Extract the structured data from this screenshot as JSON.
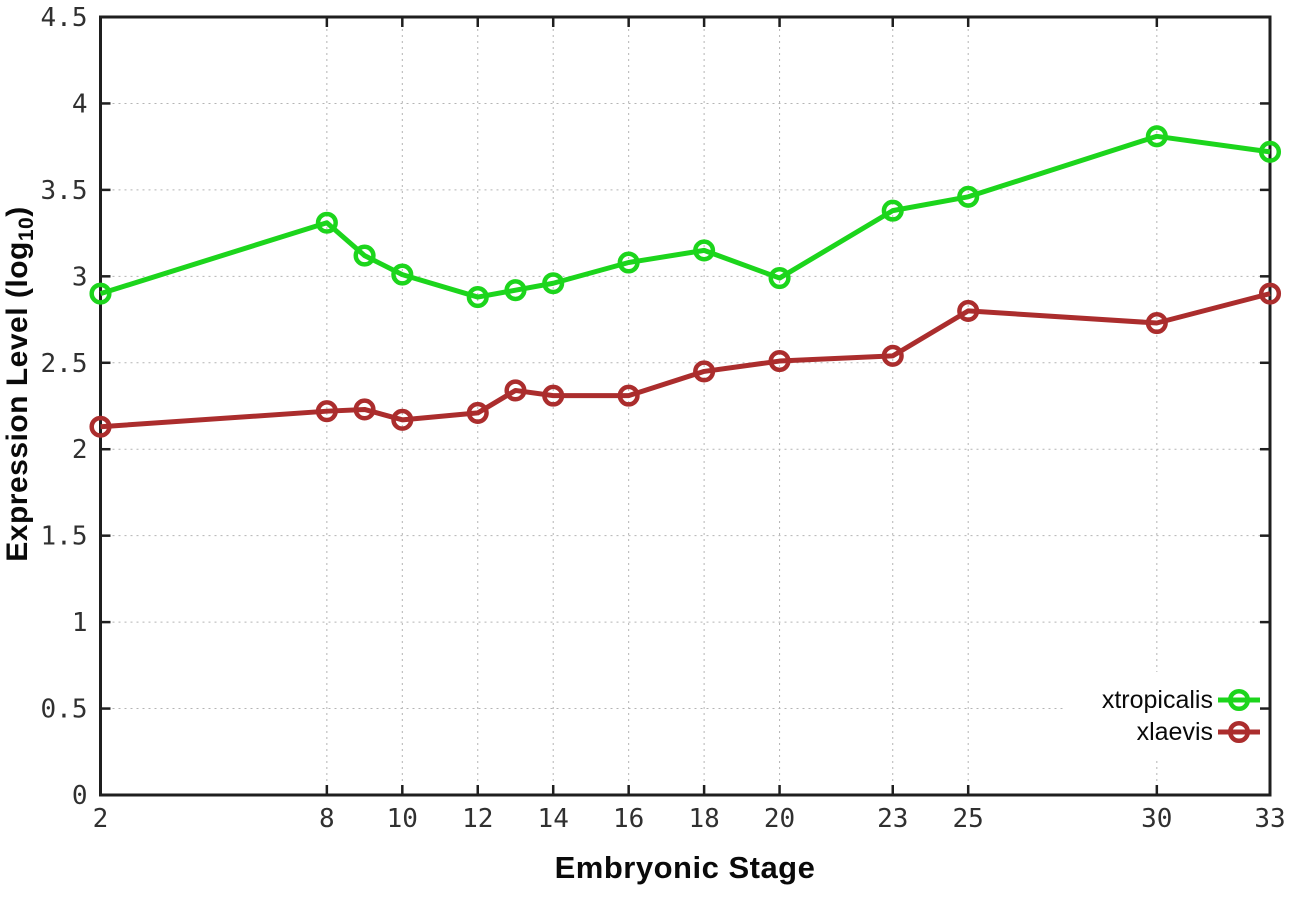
{
  "chart_data": {
    "type": "line",
    "title": "",
    "xlabel": "Embryonic Stage",
    "ylabel": "Expression Level (log10)",
    "ylabel_parts": {
      "pre": "Expression Level (log",
      "sub": "10",
      "post": ")"
    },
    "x": [
      2,
      8,
      9,
      10,
      12,
      13,
      14,
      16,
      18,
      20,
      23,
      25,
      30,
      33
    ],
    "series": [
      {
        "name": "xtropicalis",
        "color": "#1cd51c",
        "marker": "open-circle",
        "values": [
          2.9,
          3.31,
          3.12,
          3.01,
          2.88,
          2.92,
          2.96,
          3.08,
          3.15,
          2.99,
          3.38,
          3.46,
          3.81,
          3.72
        ]
      },
      {
        "name": "xlaevis",
        "color": "#ab2d2d",
        "marker": "open-circle",
        "values": [
          2.13,
          2.22,
          2.23,
          2.17,
          2.21,
          2.34,
          2.31,
          2.31,
          2.45,
          2.51,
          2.54,
          2.8,
          2.73,
          2.9
        ]
      }
    ],
    "xlim": [
      2,
      33
    ],
    "ylim": [
      0,
      4.5
    ],
    "xticks": [
      2,
      8,
      10,
      12,
      14,
      16,
      18,
      20,
      23,
      25,
      30,
      33
    ],
    "xtick_labels": [
      "2",
      "8",
      "10",
      "12",
      "14",
      "16",
      "18",
      "20",
      "23",
      "25",
      "30",
      "33"
    ],
    "yticks": [
      0,
      0.5,
      1,
      1.5,
      2,
      2.5,
      3,
      3.5,
      4,
      4.5
    ],
    "ytick_labels": [
      "0",
      "0.5",
      "1",
      "1.5",
      "2",
      "2.5",
      "3",
      "3.5",
      "4",
      "4.5"
    ],
    "grid": true,
    "grid_style": "dotted",
    "legend_position": "bottom-right",
    "style_colors": {
      "axis": "#1f1f1f",
      "grid": "#b4b4b4",
      "tick_text": "#303030",
      "background": "#ffffff"
    }
  }
}
